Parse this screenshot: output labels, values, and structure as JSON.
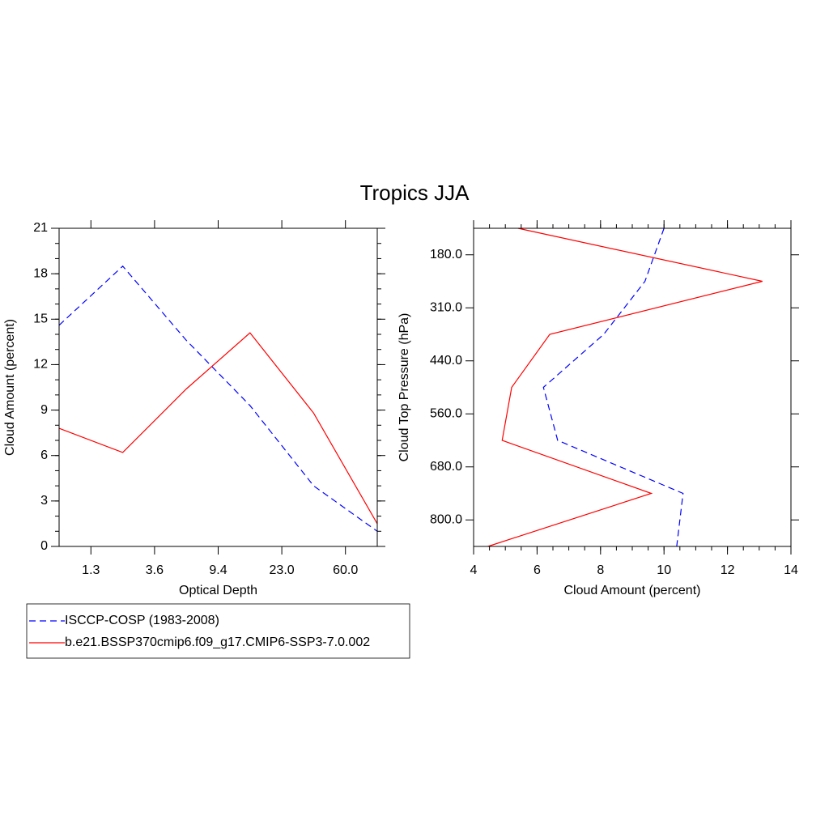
{
  "title": "Tropics JJA",
  "chart_data": [
    {
      "type": "line",
      "xlabel": "Optical Depth",
      "ylabel": "Cloud Amount (percent)",
      "x": [
        0,
        1,
        2,
        3,
        4,
        5
      ],
      "xlim": [
        0,
        5
      ],
      "xticks": [
        {
          "value": 0.5,
          "label": "1.3"
        },
        {
          "value": 1.5,
          "label": "3.6"
        },
        {
          "value": 2.5,
          "label": "9.4"
        },
        {
          "value": 3.5,
          "label": "23.0"
        },
        {
          "value": 4.5,
          "label": "60.0"
        }
      ],
      "ylim": [
        0,
        21
      ],
      "yticks": [
        0,
        3,
        6,
        9,
        12,
        15,
        18,
        21
      ],
      "yminor": 1,
      "series": [
        {
          "name": "ISCCP-COSP (1983-2008)",
          "color": "#0000ff",
          "style": "dashed",
          "values": [
            14.6,
            18.5,
            13.6,
            9.3,
            4.0,
            1.0
          ]
        },
        {
          "name": "b.e21.BSSP370cmip6.f09_g17.CMIP6-SSP3-7.0.002",
          "color": "#ff0000",
          "style": "solid",
          "values": [
            7.8,
            6.2,
            10.4,
            14.1,
            8.8,
            1.5
          ]
        }
      ]
    },
    {
      "type": "line-horizontal",
      "xlabel": "Cloud Amount (percent)",
      "ylabel": "Cloud Top Pressure (hPa)",
      "y": [
        0,
        1,
        2,
        3,
        4,
        5,
        6
      ],
      "ylim": [
        6,
        0
      ],
      "yticks": [
        {
          "value": 0.5,
          "label": "180.0"
        },
        {
          "value": 1.5,
          "label": "310.0"
        },
        {
          "value": 2.5,
          "label": "440.0"
        },
        {
          "value": 3.5,
          "label": "560.0"
        },
        {
          "value": 4.5,
          "label": "680.0"
        },
        {
          "value": 5.5,
          "label": "800.0"
        }
      ],
      "xlim": [
        4,
        14
      ],
      "xticks": [
        4,
        6,
        8,
        10,
        12,
        14
      ],
      "xminor": 0.5,
      "series": [
        {
          "color": "#0000ff",
          "style": "dashed",
          "values": [
            10.0,
            9.4,
            8.1,
            6.2,
            6.65,
            10.6,
            10.4
          ]
        },
        {
          "color": "#ff0000",
          "style": "solid",
          "values": [
            5.4,
            13.1,
            6.4,
            5.2,
            4.9,
            9.6,
            4.45
          ]
        }
      ]
    }
  ]
}
